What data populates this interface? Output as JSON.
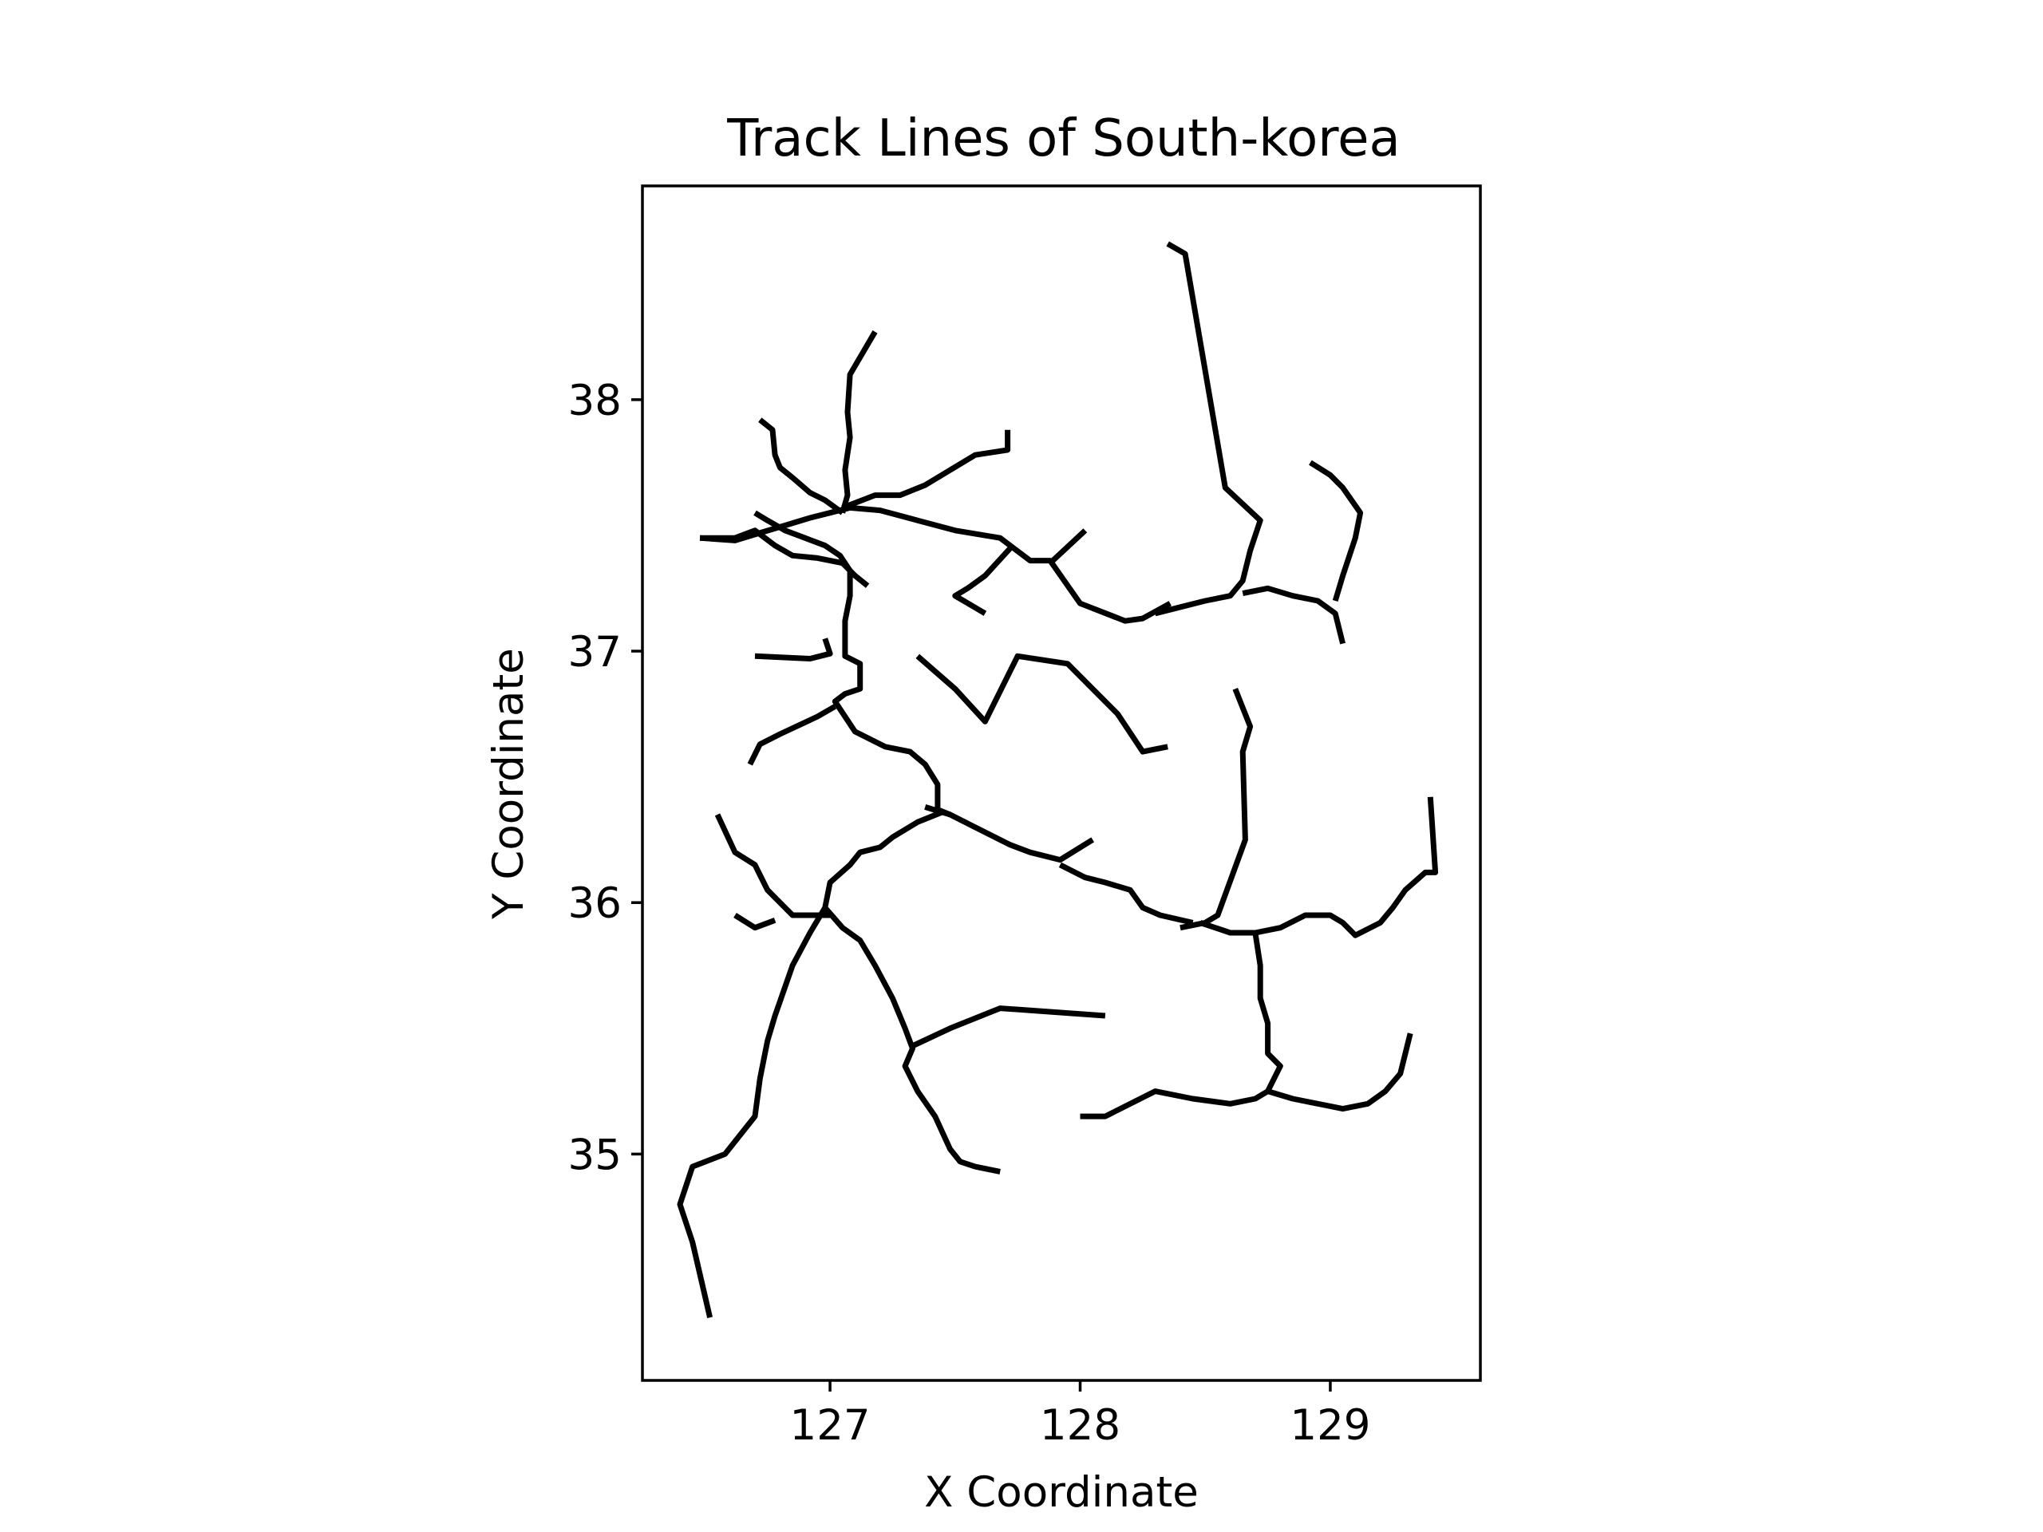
{
  "chart_data": {
    "type": "line",
    "title": "Track Lines of South-korea",
    "xlabel": "X Coordinate",
    "ylabel": "Y Coordinate",
    "xlim": [
      126.25,
      129.6
    ],
    "ylim": [
      34.1,
      38.85
    ],
    "x_ticks": [
      127,
      128,
      129
    ],
    "y_ticks": [
      35,
      36,
      37,
      38
    ],
    "grid": false,
    "legend": "none",
    "line_color": "#000000",
    "series": [
      {
        "points": [
          [
            127.18,
            38.27
          ],
          [
            127.08,
            38.1
          ],
          [
            127.07,
            37.95
          ],
          [
            127.08,
            37.85
          ],
          [
            127.06,
            37.72
          ],
          [
            127.07,
            37.62
          ],
          [
            127.05,
            37.55
          ]
        ]
      },
      {
        "points": [
          [
            127.05,
            37.57
          ],
          [
            127.18,
            37.62
          ],
          [
            127.28,
            37.62
          ],
          [
            127.38,
            37.66
          ],
          [
            127.48,
            37.72
          ],
          [
            127.58,
            37.78
          ],
          [
            127.71,
            37.8
          ],
          [
            127.71,
            37.88
          ]
        ]
      },
      {
        "points": [
          [
            126.48,
            37.45
          ],
          [
            126.62,
            37.44
          ],
          [
            126.72,
            37.47
          ],
          [
            126.82,
            37.5
          ],
          [
            126.92,
            37.53
          ],
          [
            127.0,
            37.55
          ],
          [
            127.08,
            37.57
          ],
          [
            127.2,
            37.56
          ],
          [
            127.35,
            37.52
          ],
          [
            127.5,
            37.48
          ],
          [
            127.68,
            37.45
          ],
          [
            127.8,
            37.36
          ],
          [
            127.88,
            37.36
          ],
          [
            128.0,
            37.19
          ],
          [
            128.18,
            37.12
          ],
          [
            128.25,
            37.13
          ],
          [
            128.36,
            37.19
          ]
        ]
      },
      {
        "points": [
          [
            126.48,
            37.45
          ],
          [
            126.62,
            37.45
          ],
          [
            126.7,
            37.48
          ],
          [
            126.78,
            37.42
          ],
          [
            126.85,
            37.38
          ],
          [
            126.95,
            37.37
          ],
          [
            127.05,
            37.35
          ],
          [
            127.1,
            37.3
          ],
          [
            127.15,
            37.26
          ]
        ]
      },
      {
        "points": [
          [
            126.72,
            37.92
          ],
          [
            126.77,
            37.88
          ],
          [
            126.78,
            37.78
          ],
          [
            126.8,
            37.73
          ],
          [
            126.85,
            37.69
          ],
          [
            126.92,
            37.63
          ],
          [
            126.98,
            37.6
          ],
          [
            127.05,
            37.55
          ]
        ]
      },
      {
        "points": [
          [
            126.7,
            37.55
          ],
          [
            126.75,
            37.52
          ],
          [
            126.82,
            37.48
          ],
          [
            126.9,
            37.45
          ],
          [
            126.98,
            37.42
          ],
          [
            127.04,
            37.38
          ],
          [
            127.08,
            37.32
          ],
          [
            127.08,
            37.22
          ],
          [
            127.06,
            37.12
          ],
          [
            127.06,
            36.98
          ],
          [
            127.12,
            36.95
          ],
          [
            127.12,
            36.85
          ],
          [
            127.06,
            36.83
          ],
          [
            127.02,
            36.8
          ],
          [
            127.1,
            36.68
          ],
          [
            127.22,
            36.62
          ],
          [
            127.32,
            36.6
          ],
          [
            127.38,
            36.55
          ],
          [
            127.43,
            36.47
          ],
          [
            127.43,
            36.37
          ]
        ]
      },
      {
        "points": [
          [
            126.98,
            37.05
          ],
          [
            127.0,
            36.99
          ],
          [
            126.92,
            36.97
          ],
          [
            126.7,
            36.98
          ]
        ]
      },
      {
        "points": [
          [
            126.68,
            36.55
          ],
          [
            126.72,
            36.63
          ],
          [
            126.8,
            36.67
          ],
          [
            126.95,
            36.74
          ],
          [
            127.02,
            36.78
          ]
        ]
      },
      {
        "points": [
          [
            127.43,
            36.37
          ],
          [
            127.48,
            36.35
          ],
          [
            127.58,
            36.3
          ],
          [
            127.72,
            36.23
          ],
          [
            127.8,
            36.2
          ],
          [
            127.92,
            36.17
          ],
          [
            128.05,
            36.25
          ]
        ]
      },
      {
        "points": [
          [
            127.45,
            36.36
          ],
          [
            127.35,
            36.32
          ],
          [
            127.25,
            36.26
          ],
          [
            127.2,
            36.22
          ],
          [
            127.12,
            36.2
          ],
          [
            127.08,
            36.15
          ],
          [
            127.0,
            36.08
          ],
          [
            126.98,
            35.98
          ],
          [
            126.92,
            35.88
          ],
          [
            126.85,
            35.75
          ],
          [
            126.78,
            35.55
          ],
          [
            126.75,
            35.45
          ],
          [
            126.72,
            35.3
          ],
          [
            126.7,
            35.15
          ],
          [
            126.62,
            35.05
          ],
          [
            126.58,
            35.0
          ],
          [
            126.45,
            34.95
          ],
          [
            126.4,
            34.8
          ],
          [
            126.45,
            34.65
          ],
          [
            126.52,
            34.35
          ]
        ]
      },
      {
        "points": [
          [
            126.98,
            35.98
          ],
          [
            127.05,
            35.9
          ],
          [
            127.12,
            35.85
          ],
          [
            127.18,
            35.75
          ],
          [
            127.25,
            35.62
          ],
          [
            127.3,
            35.5
          ],
          [
            127.33,
            35.42
          ],
          [
            127.3,
            35.35
          ],
          [
            127.35,
            35.25
          ],
          [
            127.42,
            35.15
          ],
          [
            127.48,
            35.02
          ],
          [
            127.52,
            34.97
          ],
          [
            127.58,
            34.95
          ],
          [
            127.68,
            34.93
          ]
        ]
      },
      {
        "points": [
          [
            127.33,
            35.43
          ],
          [
            127.48,
            35.5
          ],
          [
            127.68,
            35.58
          ],
          [
            128.1,
            35.55
          ]
        ]
      },
      {
        "points": [
          [
            127.92,
            36.15
          ],
          [
            128.02,
            36.1
          ],
          [
            128.1,
            36.08
          ],
          [
            128.2,
            36.05
          ],
          [
            128.25,
            35.98
          ],
          [
            128.32,
            35.95
          ],
          [
            128.45,
            35.92
          ]
        ]
      },
      {
        "points": [
          [
            128.62,
            36.85
          ],
          [
            128.68,
            36.7
          ],
          [
            128.65,
            36.6
          ],
          [
            128.66,
            36.25
          ],
          [
            128.55,
            35.95
          ],
          [
            128.5,
            35.92
          ],
          [
            128.4,
            35.9
          ]
        ]
      },
      {
        "points": [
          [
            128.48,
            35.92
          ],
          [
            128.6,
            35.88
          ],
          [
            128.7,
            35.88
          ],
          [
            128.8,
            35.9
          ],
          [
            128.9,
            35.95
          ],
          [
            129.0,
            35.95
          ],
          [
            129.05,
            35.92
          ],
          [
            129.1,
            35.87
          ],
          [
            129.2,
            35.92
          ],
          [
            129.25,
            35.98
          ],
          [
            129.3,
            36.05
          ],
          [
            129.38,
            36.12
          ],
          [
            129.42,
            36.12
          ],
          [
            129.4,
            36.42
          ]
        ]
      },
      {
        "points": [
          [
            128.7,
            35.88
          ],
          [
            128.72,
            35.75
          ],
          [
            128.72,
            35.62
          ],
          [
            128.75,
            35.52
          ],
          [
            128.75,
            35.4
          ],
          [
            128.8,
            35.35
          ],
          [
            128.75,
            35.25
          ],
          [
            128.7,
            35.22
          ],
          [
            128.6,
            35.2
          ],
          [
            128.45,
            35.22
          ],
          [
            128.3,
            35.25
          ],
          [
            128.1,
            35.15
          ],
          [
            128.0,
            35.15
          ]
        ]
      },
      {
        "points": [
          [
            128.75,
            35.25
          ],
          [
            128.85,
            35.22
          ],
          [
            128.95,
            35.2
          ],
          [
            129.05,
            35.18
          ],
          [
            129.15,
            35.2
          ],
          [
            129.22,
            35.25
          ],
          [
            129.28,
            35.32
          ],
          [
            129.32,
            35.48
          ]
        ]
      },
      {
        "points": [
          [
            128.35,
            38.62
          ],
          [
            128.42,
            38.58
          ],
          [
            128.58,
            37.65
          ],
          [
            128.72,
            37.52
          ],
          [
            128.68,
            37.4
          ],
          [
            128.65,
            37.28
          ],
          [
            128.6,
            37.22
          ],
          [
            128.5,
            37.2
          ],
          [
            128.42,
            37.18
          ],
          [
            128.3,
            37.15
          ]
        ]
      },
      {
        "points": [
          [
            128.65,
            37.23
          ],
          [
            128.75,
            37.25
          ],
          [
            128.85,
            37.22
          ],
          [
            128.95,
            37.2
          ],
          [
            129.02,
            37.15
          ],
          [
            129.05,
            37.03
          ]
        ]
      },
      {
        "points": [
          [
            128.92,
            37.75
          ],
          [
            129.0,
            37.7
          ],
          [
            129.05,
            37.65
          ],
          [
            129.12,
            37.55
          ],
          [
            129.1,
            37.45
          ],
          [
            129.05,
            37.3
          ],
          [
            129.02,
            37.2
          ]
        ]
      },
      {
        "points": [
          [
            127.35,
            36.98
          ],
          [
            127.5,
            36.85
          ],
          [
            127.62,
            36.72
          ],
          [
            127.75,
            36.98
          ],
          [
            127.95,
            36.95
          ],
          [
            128.15,
            36.75
          ],
          [
            128.25,
            36.6
          ],
          [
            128.35,
            36.62
          ]
        ]
      },
      {
        "points": [
          [
            127.48,
            36.35
          ],
          [
            127.38,
            36.38
          ]
        ]
      },
      {
        "points": [
          [
            127.73,
            37.42
          ],
          [
            127.62,
            37.3
          ],
          [
            127.55,
            37.25
          ],
          [
            127.5,
            37.22
          ],
          [
            127.62,
            37.15
          ]
        ]
      },
      {
        "points": [
          [
            127.88,
            37.35
          ],
          [
            128.02,
            37.48
          ]
        ]
      },
      {
        "points": [
          [
            126.55,
            36.35
          ],
          [
            126.62,
            36.2
          ],
          [
            126.7,
            36.15
          ],
          [
            126.75,
            36.05
          ],
          [
            126.85,
            35.95
          ],
          [
            127.0,
            35.95
          ]
        ]
      },
      {
        "points": [
          [
            126.62,
            35.95
          ],
          [
            126.7,
            35.9
          ],
          [
            126.78,
            35.93
          ]
        ]
      }
    ]
  }
}
